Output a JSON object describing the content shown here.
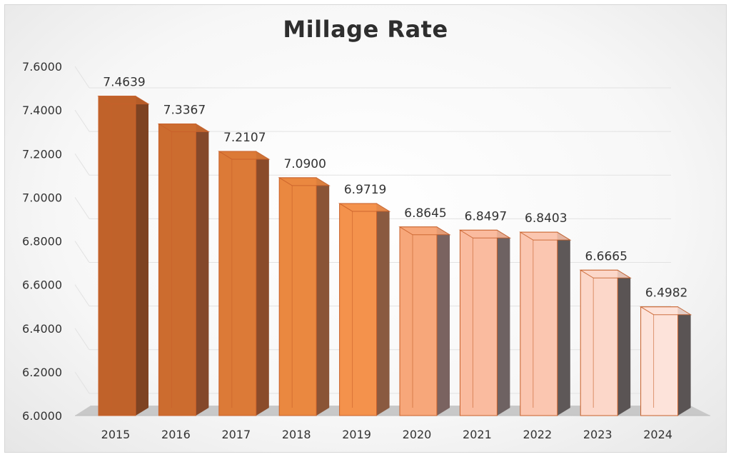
{
  "chart_data": {
    "type": "bar",
    "title": "Millage Rate",
    "xlabel": "",
    "ylabel": "",
    "categories": [
      "2015",
      "2016",
      "2017",
      "2018",
      "2019",
      "2020",
      "2021",
      "2022",
      "2023",
      "2024"
    ],
    "values": [
      7.4639,
      7.3367,
      7.2107,
      7.09,
      6.9719,
      6.8645,
      6.8497,
      6.8403,
      6.6665,
      6.4982
    ],
    "value_labels": [
      "7.4639",
      "7.3367",
      "7.2107",
      "7.0900",
      "6.9719",
      "6.8645",
      "6.8497",
      "6.8403",
      "6.6665",
      "6.4982"
    ],
    "ylim": [
      6.0,
      7.6
    ],
    "yticks": [
      6.0,
      6.2,
      6.4,
      6.6,
      6.8,
      7.0,
      7.2,
      7.4,
      7.6
    ],
    "ytick_labels": [
      "6.0000",
      "6.2000",
      "6.4000",
      "6.6000",
      "6.8000",
      "7.0000",
      "7.2000",
      "7.4000",
      "7.6000"
    ],
    "grid": true,
    "legend": "none",
    "style": "3d-column",
    "colors": {
      "front": [
        "#c0622a",
        "#cc6c2f",
        "#dc7a37",
        "#ea8840",
        "#f4924c",
        "#f7a77a",
        "#fabb9f",
        "#fbc6b0",
        "#fcd7c9",
        "#fde3da"
      ],
      "side": [
        "#7e4322",
        "#84482a",
        "#8a4b2a",
        "#8a5436",
        "#8a5a40",
        "#7a6360",
        "#6e6262",
        "#5e5858",
        "#5a5454",
        "#5a5454"
      ],
      "edge": "#c8602a",
      "floor": "#c8c8c8",
      "grid": "#e2e2e2"
    }
  }
}
